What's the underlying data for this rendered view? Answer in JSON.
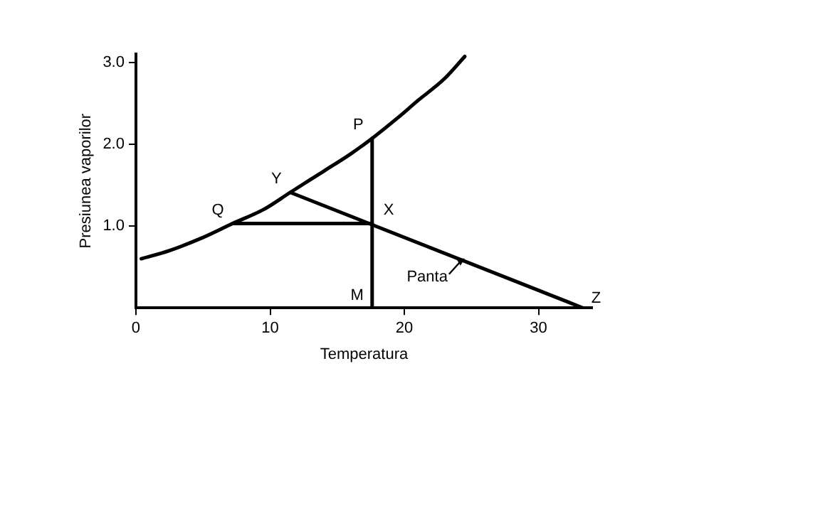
{
  "chart_data": {
    "type": "line",
    "xlabel": "Temperatura",
    "ylabel": "Presiunea vaporilor",
    "xlim": [
      0,
      34
    ],
    "ylim": [
      0,
      3.1
    ],
    "xticks": [
      0,
      10,
      20,
      30
    ],
    "yticks": [
      {
        "value": 1,
        "label": "1.0"
      },
      {
        "value": 2,
        "label": "2.0"
      },
      {
        "value": 3,
        "label": "3.0"
      }
    ],
    "grid": false,
    "legend": false,
    "marker": "none",
    "line_style": "solid",
    "series": [
      {
        "color": "#000000",
        "x": [
          0.4,
          2.5,
          5,
          7.2,
          9.5,
          11.5,
          14,
          16,
          17.6,
          19.5,
          21,
          23,
          24.5
        ],
        "values": [
          0.6,
          0.7,
          0.86,
          1.03,
          1.2,
          1.41,
          1.67,
          1.88,
          2.07,
          2.32,
          2.53,
          2.8,
          3.07
        ]
      },
      {
        "color": "#000000",
        "x": [
          7.2,
          17.6
        ],
        "values": [
          1.03,
          1.03
        ]
      },
      {
        "color": "#000000",
        "x": [
          17.6,
          17.6
        ],
        "values": [
          2.07,
          0
        ]
      },
      {
        "color": "#000000",
        "x": [
          11.5,
          33.3
        ],
        "values": [
          1.41,
          0
        ]
      }
    ],
    "annotations": [
      {
        "text": "P",
        "x": 17.6,
        "y": 2.07
      },
      {
        "text": "Y",
        "x": 11.5,
        "y": 1.41
      },
      {
        "text": "Q",
        "x": 7.2,
        "y": 1.03
      },
      {
        "text": "X",
        "x": 17.6,
        "y": 1.03
      },
      {
        "text": "M",
        "x": 17.6,
        "y": 0
      },
      {
        "text": "Z",
        "x": 33.3,
        "y": 0
      },
      {
        "text": "Panta",
        "x": 24.5,
        "y": 0.62
      }
    ]
  }
}
